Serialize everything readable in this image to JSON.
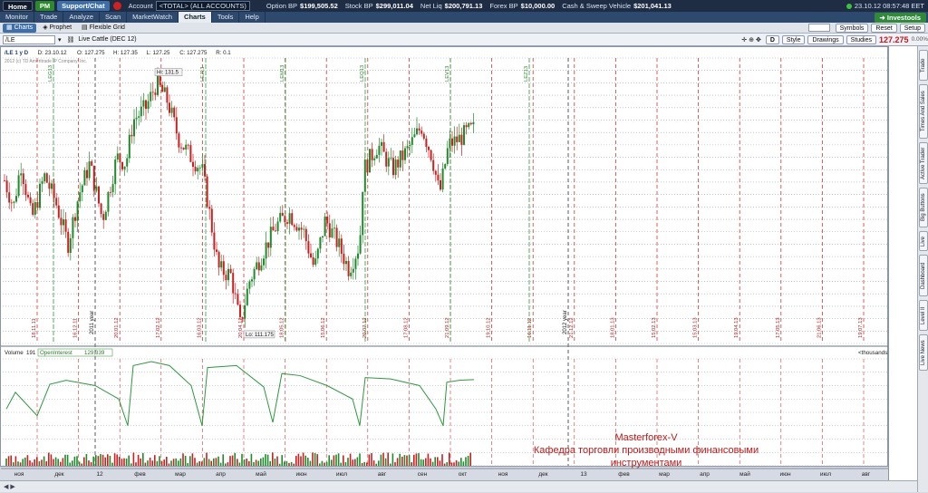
{
  "topbar": {
    "home": "Home",
    "pm": "PM",
    "support": "Support/Chat",
    "account_label": "Account",
    "account_value": "<TOTAL> (ALL ACCOUNTS)",
    "option_bp": "Option BP",
    "option_bp_val": "$199,505.52",
    "stock_bp": "Stock BP",
    "stock_bp_val": "$299,011.04",
    "net_liq": "Net Liq",
    "net_liq_val": "$200,791.13",
    "forex_bp": "Forex BP",
    "forex_bp_val": "$10,000.00",
    "cash_sweep": "Cash & Sweep Vehicle",
    "cash_sweep_val": "$201,041.13",
    "clock": "23.10.12 08:57:48 EET"
  },
  "nav": {
    "tabs": [
      "Monitor",
      "Trade",
      "Analyze",
      "Scan",
      "MarketWatch",
      "Charts",
      "Tools",
      "Help"
    ],
    "active": "Charts",
    "investools": "Investools"
  },
  "subnav": {
    "items": [
      "Charts",
      "Prophet",
      "Flexible Grid"
    ],
    "active": "Charts",
    "symbols": "Symbols",
    "reset": "Reset",
    "setup": "Setup"
  },
  "chart_toolbar": {
    "symbol": "/LE",
    "name": "Live Cattle (DEC 12)",
    "style": "Style",
    "drawings": "Drawings",
    "studies": "Studies",
    "last_price": "127.275",
    "change": "0.00%",
    "period_button": "D"
  },
  "info_line": {
    "period": "/LE 1 y D",
    "date": "D: 23.10.12",
    "open": "O: 127.275",
    "high": "H: 127.35",
    "low": "L: 127.25",
    "close": "C: 127.275",
    "range": "R: 0.1",
    "copyright": "2012 (c) TD Ameritrade IP Company, Inc."
  },
  "annotations": {
    "high_label": "Hi: 131.5",
    "low_label": "Lo: 111.175",
    "price_tag": "127.275",
    "oi_tag": "129,339",
    "watermark_line1": "Masterforex-V",
    "watermark_line2": "Кафедра торговли производными финансовыми",
    "watermark_line3": "инструментами"
  },
  "lower_panel": {
    "volume_label": "Volume",
    "volume_val": "191",
    "oi_label": "OpenInterest",
    "oi_val": "129,339",
    "units": "<thousands>"
  },
  "chart_data": [
    {
      "type": "candlestick",
      "series": [
        {
          "name": "/LE"
        }
      ],
      "ylim": [
        110,
        133
      ],
      "y_ticks": [
        110,
        111,
        112,
        113,
        114,
        115,
        116,
        117,
        118,
        119,
        120,
        121,
        122,
        123,
        124,
        125,
        126,
        127,
        128,
        129,
        130,
        131,
        132,
        133
      ],
      "x_ticks": [
        "ноя",
        "дек",
        "12",
        "фев",
        "мар",
        "апр",
        "май",
        "июн",
        "июл",
        "авг",
        "сен",
        "окт",
        "ноя",
        "дек",
        "13",
        "фев",
        "мар",
        "апр",
        "май",
        "июн",
        "июл",
        "авг"
      ],
      "year_markers": [
        "2011 year",
        "2012 year"
      ],
      "date_markers": [
        "18.11.11",
        "16.12.11",
        "20.01.12",
        "17.02.12",
        "16.03.12",
        "20.04.12",
        "18.05.12",
        "15.06.12",
        "20.07.12",
        "17.08.12",
        "21.09.12",
        "19.10.12",
        "16.11.12",
        "21.12.12",
        "18.01.13",
        "15.02.13",
        "15.03.13",
        "19.04.13",
        "17.05.13",
        "21.06.13",
        "19.07.13",
        "16.08.13"
      ],
      "contract_markers": [
        "LEG13",
        "LEJ13",
        "LEM13",
        "LEQ13",
        "LEV13",
        "LEZ13"
      ],
      "grid": true,
      "hi": 131.5,
      "lo": 111.175,
      "last": 127.275
    },
    {
      "type": "bar+line",
      "series": [
        {
          "name": "Volume"
        },
        {
          "name": "OpenInterest"
        }
      ],
      "ylim": [
        0,
        160
      ],
      "y_ticks": [
        0,
        20,
        40,
        60,
        80,
        100,
        120,
        140,
        160
      ],
      "last_open_interest": 129.339,
      "last_volume": 191
    }
  ],
  "side_tabs": [
    "Trade",
    "Times And Sales",
    "Active Trader",
    "Big Buttons",
    "Live",
    "Dashboard",
    "Level II",
    "Live News"
  ]
}
